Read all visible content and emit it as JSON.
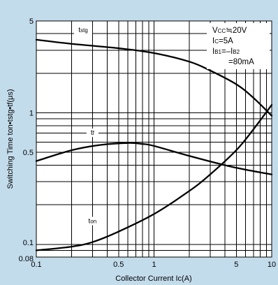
{
  "chart_data": {
    "type": "line",
    "xscale": "log",
    "yscale": "log",
    "xlim": [
      0.1,
      10
    ],
    "ylim": [
      0.08,
      5
    ],
    "x_tick_labels": [
      {
        "v": 0.1,
        "t": "0.1"
      },
      {
        "v": 0.5,
        "t": "0.5"
      },
      {
        "v": 1,
        "t": "1"
      },
      {
        "v": 5,
        "t": "5"
      },
      {
        "v": 10,
        "t": "10"
      }
    ],
    "y_tick_labels": [
      {
        "v": 0.08,
        "t": "0.08"
      },
      {
        "v": 0.1,
        "t": "0.1"
      },
      {
        "v": 0.5,
        "t": "0.5"
      },
      {
        "v": 1,
        "t": "1"
      },
      {
        "v": 5,
        "t": "5"
      }
    ],
    "xlabel": "Collector Current Ic(A)",
    "ylabel": "Switching Time ton•tstg•tf(μs)",
    "grid": true,
    "conditions": [
      "VCC≈20V",
      "IC=5A",
      "IB1=–IB2",
      "=80mA"
    ],
    "series": [
      {
        "name": "tstg",
        "x": [
          0.1,
          0.2,
          0.5,
          1,
          2,
          3,
          5,
          7,
          10
        ],
        "y": [
          3.6,
          3.35,
          3.1,
          2.85,
          2.45,
          2.1,
          1.65,
          1.3,
          0.95
        ]
      },
      {
        "name": "tf",
        "x": [
          0.1,
          0.2,
          0.35,
          0.6,
          0.8,
          1,
          2,
          4,
          6,
          10
        ],
        "y": [
          0.43,
          0.52,
          0.57,
          0.59,
          0.58,
          0.56,
          0.47,
          0.4,
          0.37,
          0.34
        ]
      },
      {
        "name": "ton",
        "x": [
          0.1,
          0.2,
          0.3,
          0.5,
          1,
          2,
          3,
          5,
          7,
          10
        ],
        "y": [
          0.09,
          0.096,
          0.104,
          0.125,
          0.17,
          0.255,
          0.34,
          0.52,
          0.75,
          1.15
        ]
      }
    ]
  }
}
